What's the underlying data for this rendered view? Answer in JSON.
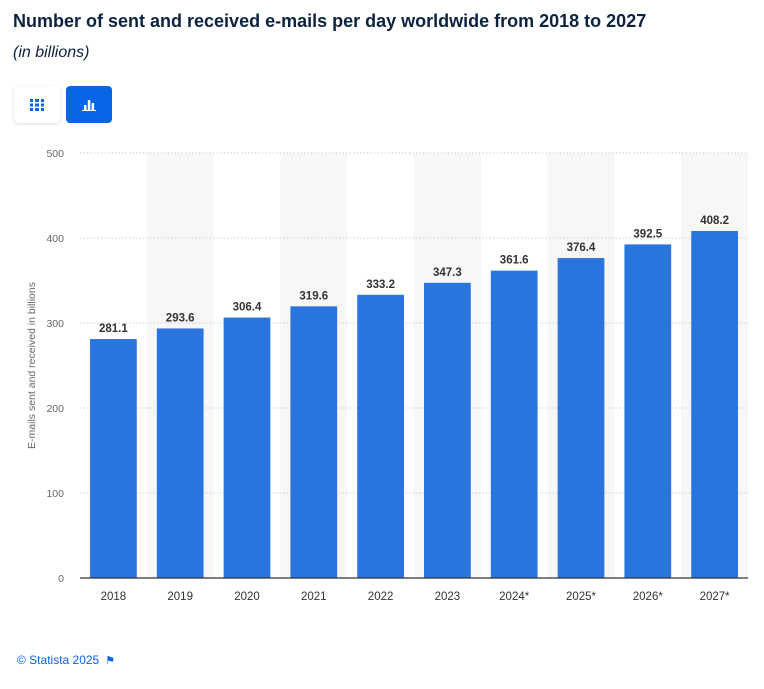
{
  "header": {
    "title": "Number of sent and received e-mails per day worldwide from 2018 to 2027",
    "subtitle": "(in billions)"
  },
  "toolbar": {
    "table_icon": "grid-table-icon",
    "chart_icon": "bar-chart-icon",
    "active": "chart"
  },
  "footer": {
    "copyright": "© Statista 2025",
    "flag_icon": "flag-icon"
  },
  "colors": {
    "bar": "#2a75dd",
    "accent": "#0666e5",
    "title": "#0c2340"
  },
  "chart_data": {
    "type": "bar",
    "categories": [
      "2018",
      "2019",
      "2020",
      "2021",
      "2022",
      "2023",
      "2024*",
      "2025*",
      "2026*",
      "2027*"
    ],
    "values": [
      281.1,
      293.6,
      306.4,
      319.6,
      333.2,
      347.3,
      361.6,
      376.4,
      392.5,
      408.2
    ],
    "data_labels": [
      "281.1",
      "293.6",
      "306.4",
      "319.6",
      "333.2",
      "347.3",
      "361.6",
      "376.4",
      "392.5",
      "408.2"
    ],
    "yticks": [
      "0",
      "100",
      "200",
      "300",
      "400",
      "500"
    ],
    "ylabel": "E-mails sent and received in billions",
    "xlabel": "",
    "ylim": [
      0,
      500
    ],
    "grid": true
  }
}
